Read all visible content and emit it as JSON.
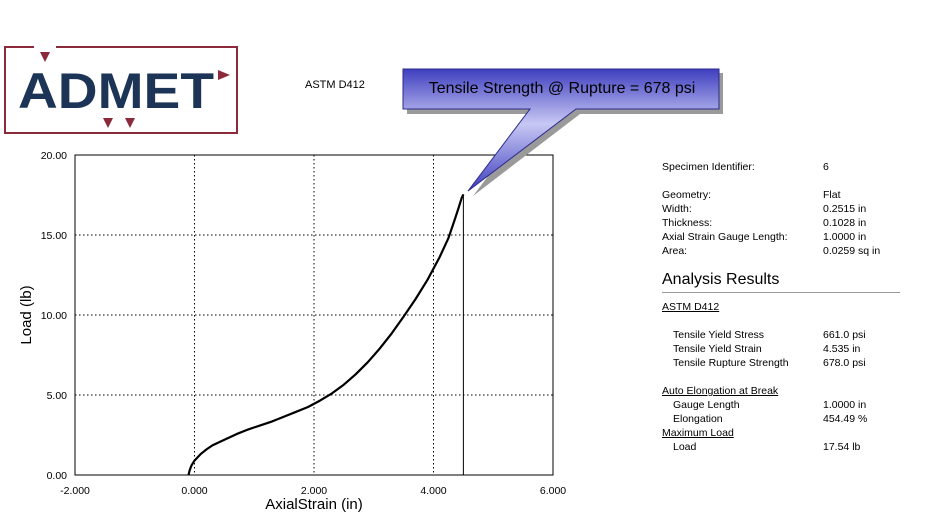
{
  "header": {
    "logo_text": "ADMET",
    "test_standard": "ASTM D412",
    "callout": "Tensile Strength @ Rupture = 678 psi"
  },
  "colors": {
    "logo_frame": "#8a2a3a",
    "logo_text": "#1c3557",
    "callout_fill": "#3f3fc0",
    "callout_fill_light": "#c8c8f4"
  },
  "chart_data": {
    "type": "line",
    "xlabel": "AxialStrain (in)",
    "ylabel": "Load (lb)",
    "xlim": [
      -2.0,
      6.0
    ],
    "ylim": [
      0.0,
      20.0
    ],
    "xticks": [
      "-2.000",
      "0.000",
      "2.000",
      "4.000",
      "6.000"
    ],
    "yticks": [
      "0.00",
      "5.00",
      "10.00",
      "15.00",
      "20.00"
    ],
    "grid": "dotted",
    "series": [
      {
        "x": [
          -0.1,
          -0.08,
          -0.05,
          0.0,
          0.1,
          0.2,
          0.3,
          0.5,
          0.7,
          0.9,
          1.1,
          1.3,
          1.5,
          1.7,
          1.9,
          2.1,
          2.3,
          2.5,
          2.7,
          2.9,
          3.1,
          3.3,
          3.5,
          3.7,
          3.9,
          4.1,
          4.25,
          4.35,
          4.42,
          4.47,
          4.5
        ],
        "y": [
          0.0,
          0.3,
          0.6,
          0.9,
          1.3,
          1.6,
          1.85,
          2.2,
          2.55,
          2.85,
          3.1,
          3.35,
          3.65,
          3.95,
          4.25,
          4.65,
          5.1,
          5.65,
          6.3,
          7.05,
          7.9,
          8.85,
          9.9,
          11.0,
          12.2,
          13.6,
          14.8,
          15.9,
          16.7,
          17.3,
          17.54
        ]
      }
    ],
    "rupture_drop_x": 4.5
  },
  "specimen": {
    "rows": [
      {
        "label": "Specimen Identifier:",
        "value": "6"
      },
      {
        "label": "Geometry:",
        "value": "Flat"
      },
      {
        "label": "Width:",
        "value": "0.2515 in"
      },
      {
        "label": "Thickness:",
        "value": "0.1028 in"
      },
      {
        "label": "Axial Strain Gauge Length:",
        "value": "1.0000 in"
      },
      {
        "label": "Area:",
        "value": "0.0259 sq in"
      }
    ]
  },
  "analysis": {
    "title": "Analysis Results",
    "standard": "ASTM D412",
    "results": [
      {
        "label": "Tensile Yield Stress",
        "value": "661.0 psi"
      },
      {
        "label": "Tensile Yield Strain",
        "value": "4.535 in"
      },
      {
        "label": "Tensile Rupture Strength",
        "value": "678.0 psi"
      }
    ],
    "auto_elongation": {
      "heading": "Auto Elongation at Break",
      "rows": [
        {
          "label": "Gauge Length",
          "value": "1.0000 in"
        },
        {
          "label": "Elongation",
          "value": "454.49 %"
        }
      ]
    },
    "max_load": {
      "heading": "Maximum Load",
      "rows": [
        {
          "label": "Load",
          "value": "17.54 lb"
        }
      ]
    }
  }
}
